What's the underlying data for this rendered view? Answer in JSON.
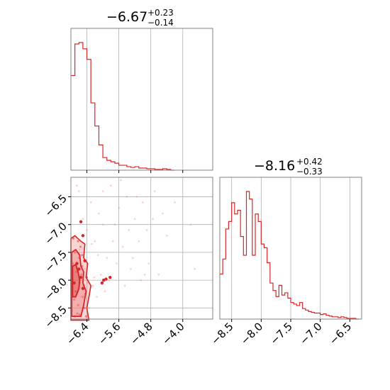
{
  "colors": {
    "accent": "#d62728",
    "grid": "#b0b0b0",
    "fill": "#f08080"
  },
  "chart_data": [
    {
      "type": "histogram",
      "panel": "top-left",
      "title": {
        "value": "−6.67",
        "plus": "+0.23",
        "minus": "−0.14"
      },
      "xlim": [
        -6.8,
        -3.25
      ],
      "grid": true,
      "bin_edges": [
        -6.8,
        -6.7,
        -6.6,
        -6.5,
        -6.4,
        -6.3,
        -6.2,
        -6.1,
        -6.0,
        -5.9,
        -5.8,
        -5.7,
        -5.6,
        -5.5,
        -5.4,
        -5.3,
        -5.2,
        -5.1,
        -5.0,
        -4.9,
        -4.8,
        -4.7,
        -4.6,
        -4.5,
        -4.4,
        -4.3,
        -4.2
      ],
      "counts": [
        135,
        180,
        182,
        173,
        158,
        96,
        63,
        36,
        18,
        14,
        12,
        10,
        7,
        7,
        5,
        4,
        5,
        3,
        3,
        2,
        2,
        1,
        1,
        2,
        1,
        0
      ]
    },
    {
      "type": "histogram",
      "panel": "bottom-right",
      "title": {
        "value": "−8.16",
        "plus": "+0.42",
        "minus": "−0.33"
      },
      "xlim": [
        -8.7,
        -6.3
      ],
      "xticks": [
        "−8.5",
        "−8.0",
        "−7.5",
        "−7.0",
        "−6.5"
      ],
      "xtick_values": [
        -8.5,
        -8.0,
        -7.5,
        -7.0,
        -6.5
      ],
      "grid": true,
      "bin_edges": [
        -8.7,
        -8.65,
        -8.6,
        -8.55,
        -8.5,
        -8.45,
        -8.4,
        -8.35,
        -8.3,
        -8.25,
        -8.2,
        -8.15,
        -8.1,
        -8.05,
        -8.0,
        -7.95,
        -7.9,
        -7.85,
        -7.8,
        -7.75,
        -7.7,
        -7.65,
        -7.6,
        -7.55,
        -7.5,
        -7.45,
        -7.4,
        -7.35,
        -7.3,
        -7.25,
        -7.2,
        -7.15,
        -7.1,
        -7.05,
        -7.0,
        -6.95,
        -6.9,
        -6.85,
        -6.8,
        -6.75,
        -6.7,
        -6.65,
        -6.6,
        -6.55,
        -6.5,
        -6.45,
        -6.4,
        -6.35
      ],
      "counts": [
        60,
        80,
        120,
        130,
        155,
        140,
        145,
        110,
        85,
        170,
        160,
        85,
        140,
        130,
        100,
        95,
        75,
        48,
        38,
        30,
        45,
        32,
        35,
        28,
        22,
        20,
        18,
        22,
        14,
        12,
        10,
        9,
        8,
        8,
        6,
        7,
        5,
        4,
        3,
        3,
        2,
        3,
        2,
        1,
        1,
        1,
        0
      ]
    },
    {
      "type": "scatter",
      "panel": "bottom-left",
      "xlim": [
        -6.8,
        -3.25
      ],
      "ylim": [
        -8.7,
        -6.15
      ],
      "xticks": [
        "−6.4",
        "−5.6",
        "−4.8",
        "−4.0"
      ],
      "xtick_values": [
        -6.4,
        -5.6,
        -4.8,
        -4.0
      ],
      "yticks": [
        "−6.5",
        "−7.0",
        "−7.5",
        "−8.0",
        "−8.5"
      ],
      "ytick_values": [
        -6.5,
        -7.0,
        -7.5,
        -8.0,
        -8.5
      ],
      "grid": true,
      "sparse_points": [
        [
          -6.7,
          -7.2
        ],
        [
          -6.6,
          -6.4
        ],
        [
          -6.5,
          -6.9
        ],
        [
          -6.4,
          -7.1
        ],
        [
          -6.3,
          -6.6
        ],
        [
          -6.2,
          -7.3
        ],
        [
          -6.1,
          -6.8
        ],
        [
          -6.0,
          -6.4
        ],
        [
          -5.9,
          -7.6
        ],
        [
          -5.8,
          -6.3
        ],
        [
          -5.7,
          -7.0
        ],
        [
          -5.6,
          -6.7
        ],
        [
          -5.5,
          -7.4
        ],
        [
          -5.4,
          -6.5
        ],
        [
          -5.3,
          -7.8
        ],
        [
          -5.2,
          -6.9
        ],
        [
          -5.1,
          -7.3
        ],
        [
          -5.0,
          -6.6
        ],
        [
          -4.9,
          -7.1
        ],
        [
          -4.8,
          -7.5
        ],
        [
          -4.7,
          -6.4
        ],
        [
          -4.6,
          -7.9
        ],
        [
          -4.5,
          -6.8
        ],
        [
          -6.45,
          -7.8
        ],
        [
          -6.25,
          -8.1
        ],
        [
          -6.05,
          -7.9
        ],
        [
          -5.85,
          -8.0
        ],
        [
          -5.65,
          -7.7
        ],
        [
          -5.45,
          -8.1
        ],
        [
          -5.25,
          -7.6
        ],
        [
          -5.05,
          -8.0
        ],
        [
          -4.85,
          -7.7
        ],
        [
          -6.55,
          -8.3
        ],
        [
          -6.35,
          -8.5
        ],
        [
          -6.15,
          -8.3
        ],
        [
          -5.95,
          -8.2
        ],
        [
          -3.7,
          -7.8
        ],
        [
          -3.8,
          -7.0
        ],
        [
          -4.2,
          -6.6
        ],
        [
          -4.4,
          -7.2
        ],
        [
          -6.65,
          -6.3
        ],
        [
          -6.0,
          -7.0
        ],
        [
          -5.75,
          -7.3
        ],
        [
          -5.55,
          -6.2
        ],
        [
          -5.35,
          -7.1
        ],
        [
          -5.15,
          -6.5
        ],
        [
          -4.95,
          -7.9
        ],
        [
          -4.75,
          -6.9
        ],
        [
          -6.58,
          -7.45
        ],
        [
          -6.42,
          -7.65
        ],
        [
          -6.28,
          -7.35
        ],
        [
          -6.12,
          -7.55
        ],
        [
          -6.38,
          -8.05
        ],
        [
          -6.22,
          -7.95
        ]
      ],
      "dense_points": [
        [
          -6.78,
          -8.55
        ],
        [
          -6.72,
          -8.35
        ],
        [
          -6.68,
          -8.2
        ],
        [
          -6.62,
          -8.45
        ],
        [
          -6.58,
          -8.05
        ],
        [
          -6.54,
          -7.9
        ],
        [
          -6.5,
          -8.3
        ],
        [
          -6.75,
          -7.7
        ],
        [
          -6.7,
          -7.5
        ],
        [
          -6.66,
          -7.85
        ],
        [
          -6.6,
          -7.6
        ],
        [
          -6.56,
          -7.4
        ],
        [
          -6.52,
          -7.75
        ],
        [
          -6.48,
          -8.1
        ],
        [
          -6.44,
          -8.25
        ],
        [
          -6.4,
          -7.95
        ],
        [
          -6.76,
          -8.0
        ],
        [
          -6.64,
          -8.6
        ],
        [
          -6.46,
          -8.5
        ],
        [
          -6.42,
          -8.65
        ],
        [
          -6.7,
          -8.65
        ],
        [
          -6.58,
          -8.62
        ],
        [
          -6.52,
          -7.55
        ],
        [
          -6.62,
          -7.3
        ],
        [
          -6.74,
          -7.25
        ]
      ],
      "marker_points": [
        [
          -6.55,
          -6.95
        ],
        [
          -6.5,
          -7.2
        ],
        [
          -6.65,
          -7.7
        ],
        [
          -6.6,
          -7.8
        ],
        [
          -6.55,
          -7.95
        ],
        [
          -6.5,
          -8.15
        ],
        [
          -6.45,
          -7.65
        ],
        [
          -6.72,
          -8.05
        ],
        [
          -6.02,
          -8.05
        ],
        [
          -5.98,
          -8.0
        ],
        [
          -5.92,
          -7.98
        ],
        [
          -5.82,
          -7.95
        ]
      ],
      "contours": [
        {
          "level": "outer",
          "points": [
            [
              -6.8,
              -8.72
            ],
            [
              -6.8,
              -7.25
            ],
            [
              -6.7,
              -7.2
            ],
            [
              -6.55,
              -7.3
            ],
            [
              -6.45,
              -7.35
            ],
            [
              -6.48,
              -7.6
            ],
            [
              -6.38,
              -7.7
            ],
            [
              -6.42,
              -7.95
            ],
            [
              -6.3,
              -8.1
            ],
            [
              -6.36,
              -8.35
            ],
            [
              -6.4,
              -8.5
            ],
            [
              -6.35,
              -8.72
            ]
          ]
        },
        {
          "level": "middle",
          "points": [
            [
              -6.78,
              -8.65
            ],
            [
              -6.78,
              -7.5
            ],
            [
              -6.68,
              -7.45
            ],
            [
              -6.58,
              -7.55
            ],
            [
              -6.55,
              -7.75
            ],
            [
              -6.48,
              -7.85
            ],
            [
              -6.5,
              -8.05
            ],
            [
              -6.42,
              -8.2
            ],
            [
              -6.48,
              -8.45
            ],
            [
              -6.55,
              -8.65
            ]
          ]
        },
        {
          "level": "inner",
          "points": [
            [
              -6.76,
              -8.3
            ],
            [
              -6.76,
              -7.75
            ],
            [
              -6.68,
              -7.72
            ],
            [
              -6.62,
              -7.85
            ],
            [
              -6.58,
              -8.0
            ],
            [
              -6.6,
              -8.15
            ],
            [
              -6.68,
              -8.3
            ]
          ]
        }
      ]
    }
  ]
}
